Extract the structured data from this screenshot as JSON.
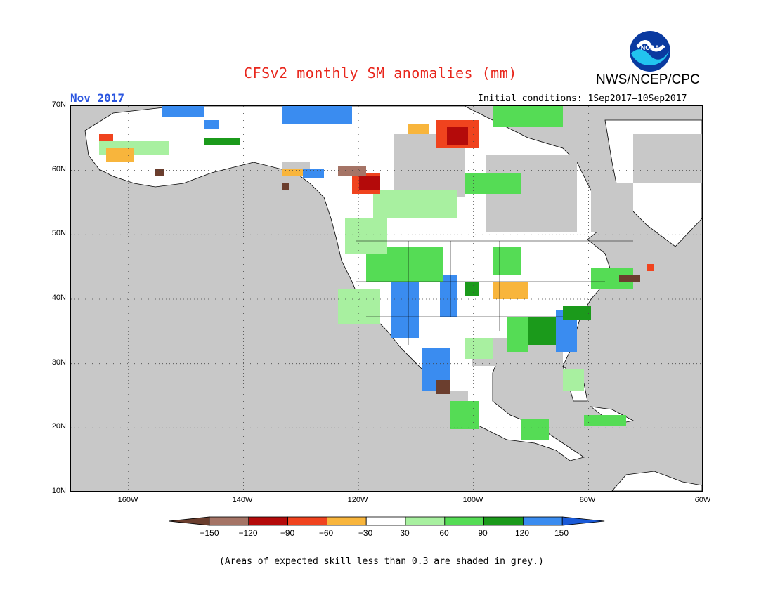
{
  "header": {
    "title": "CFSv2 monthly SM anomalies (mm)",
    "month": "Nov 2017",
    "agency": "NWS/NCEP/CPC",
    "initial_conditions": "Initial conditions: 1Sep2017–10Sep2017",
    "logo_text": "NOAA"
  },
  "map": {
    "lat_labels": [
      "70N",
      "60N",
      "50N",
      "40N",
      "30N",
      "20N",
      "10N"
    ],
    "lon_labels": [
      "160W",
      "140W",
      "120W",
      "100W",
      "80W",
      "60W"
    ],
    "colors": {
      "ocean": "#c8c8c8",
      "land_white": "#ffffff",
      "land_grey": "#c8c8c8"
    }
  },
  "colorbar": {
    "labels": [
      "−150",
      "−120",
      "−90",
      "−60",
      "−30",
      "30",
      "60",
      "90",
      "120",
      "150"
    ],
    "colors": [
      "#6b3e2e",
      "#a57466",
      "#b40a0a",
      "#f0431e",
      "#f8b53c",
      "#ffffff",
      "#a8f0a0",
      "#55dc55",
      "#1b9a1b",
      "#3a8cf0",
      "#1a5ad8"
    ]
  },
  "footer": {
    "note": "(Areas of expected skill less than 0.3 are shaded in grey.)"
  }
}
